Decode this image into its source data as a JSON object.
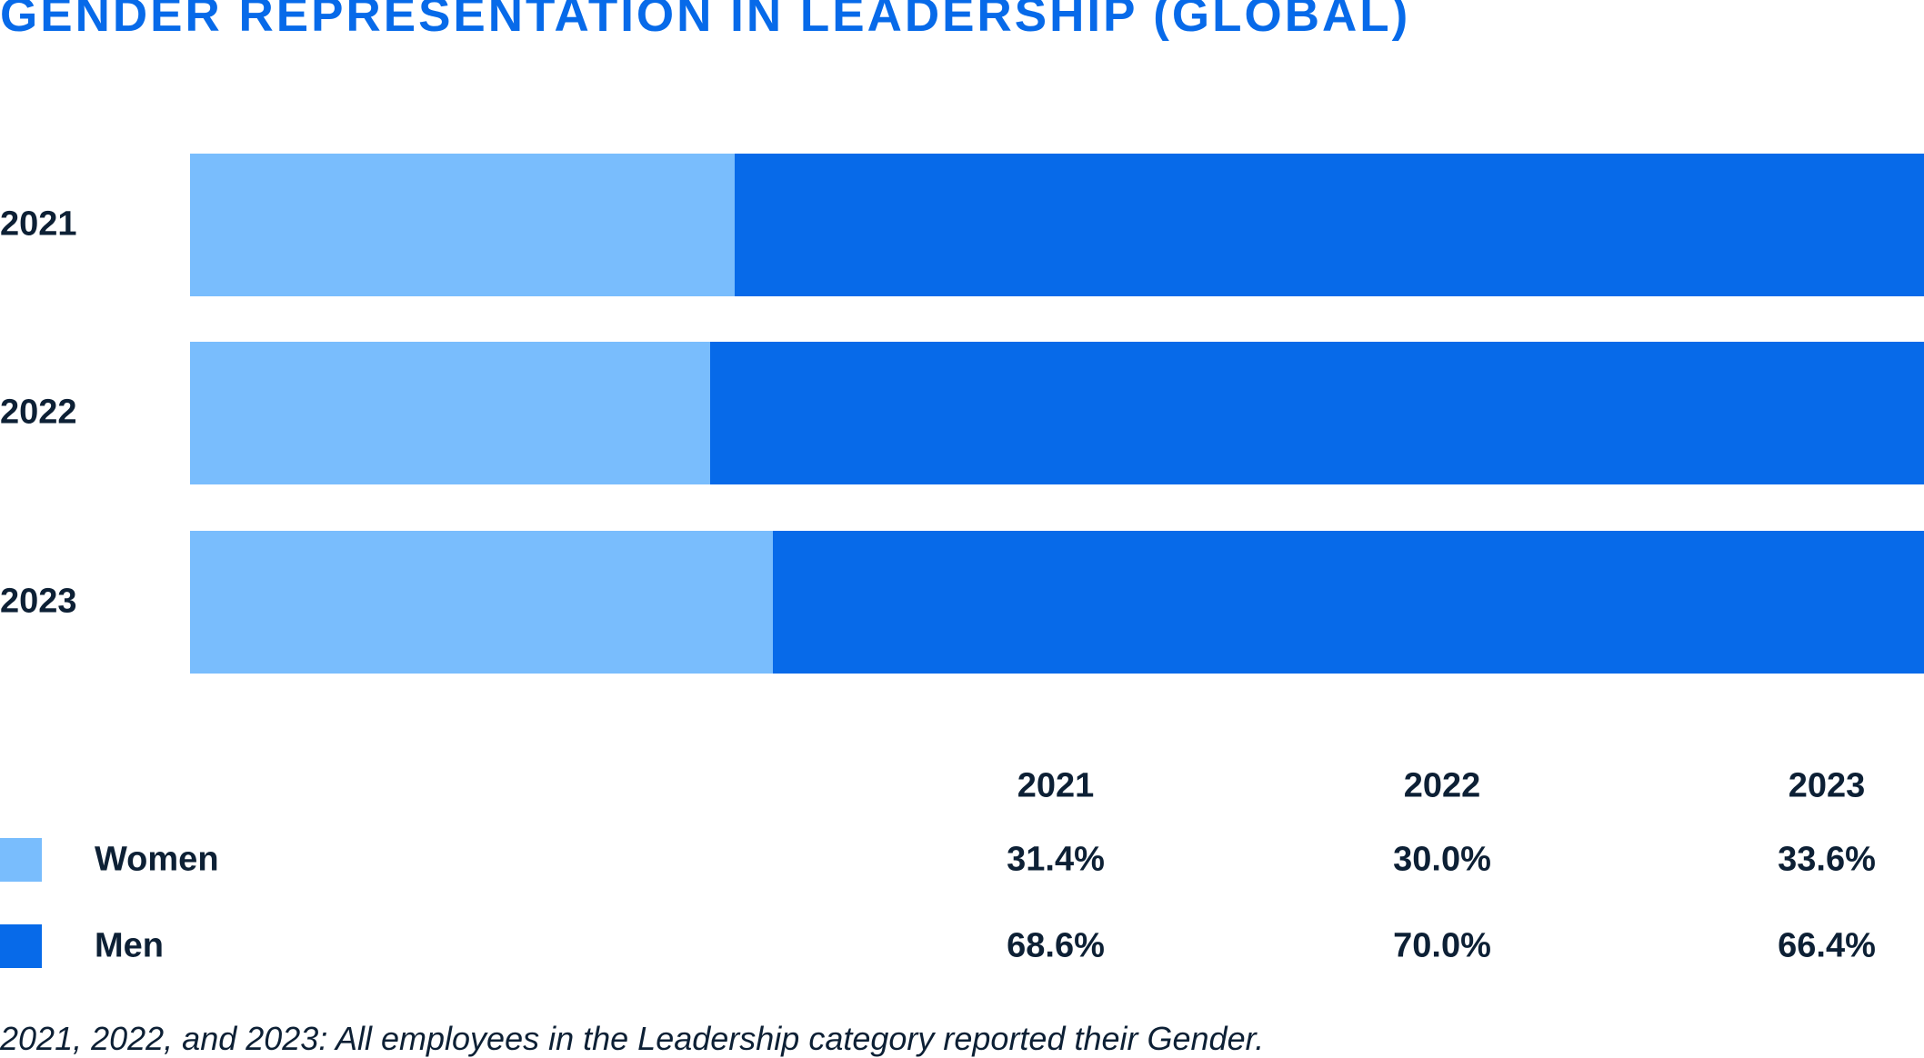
{
  "title": "GENDER REPRESENTATION IN LEADERSHIP (GLOBAL)",
  "chart_data": {
    "type": "bar",
    "orientation": "horizontal",
    "stacked": true,
    "title": "GENDER REPRESENTATION IN LEADERSHIP (GLOBAL)",
    "categories": [
      "2021",
      "2022",
      "2023"
    ],
    "series": [
      {
        "name": "Women",
        "values": [
          31.4,
          30.0,
          33.6
        ],
        "color": "#79bdfd"
      },
      {
        "name": "Men",
        "values": [
          68.6,
          70.0,
          66.4
        ],
        "color": "#076ae9"
      }
    ],
    "xlim": [
      0,
      100
    ],
    "grid": false,
    "legend": "bottom-left table"
  },
  "table": {
    "headers": [
      "2021",
      "2022",
      "2023"
    ],
    "rows": [
      {
        "label": "Women",
        "values": [
          "31.4%",
          "30.0%",
          "33.6%"
        ]
      },
      {
        "label": "Men",
        "values": [
          "68.6%",
          "70.0%",
          "66.4%"
        ]
      }
    ]
  },
  "footnote": "2021, 2022, and 2023: All employees in the Leadership category reported their Gender."
}
